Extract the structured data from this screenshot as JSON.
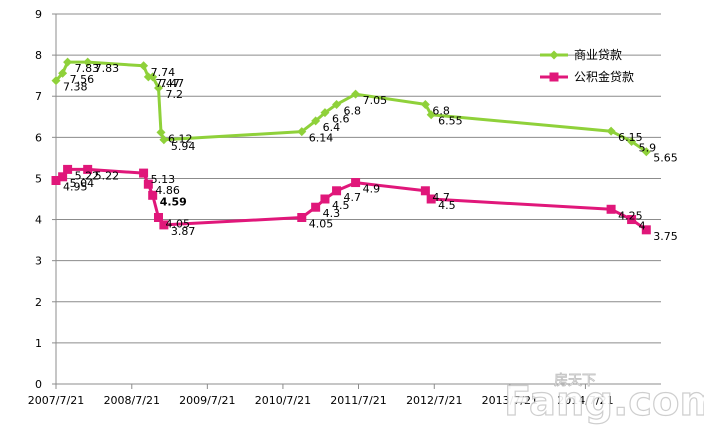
{
  "chart_data": {
    "type": "line",
    "title": "",
    "xlabel": "",
    "ylabel": "",
    "ylim": [
      0,
      9
    ],
    "yticks": [
      "0",
      "1",
      "2",
      "3",
      "4",
      "5",
      "6",
      "7",
      "8",
      "9"
    ],
    "xlim": [
      "2007-07-21",
      "2015-07-21"
    ],
    "xticks": [
      "2007/7/21",
      "2008/7/21",
      "2009/7/21",
      "2010/7/21",
      "2011/7/21",
      "2012/7/21",
      "2013/7/21",
      "2014/7/21"
    ],
    "grid": true,
    "legend_position": "top-right",
    "series": [
      {
        "name": "商业贷款",
        "color": "#8fd13a",
        "marker": "diamond",
        "points": [
          {
            "x": "2007-07-21",
            "y": 7.38,
            "label": "7.38"
          },
          {
            "x": "2007-08-22",
            "y": 7.56,
            "label": "7.56"
          },
          {
            "x": "2007-09-15",
            "y": 7.83,
            "label": "7.83"
          },
          {
            "x": "2007-12-21",
            "y": 7.83,
            "label": "7.83"
          },
          {
            "x": "2008-09-16",
            "y": 7.74,
            "label": "7.74"
          },
          {
            "x": "2008-10-09",
            "y": 7.47,
            "label": "7.47"
          },
          {
            "x": "2008-10-30",
            "y": 7.47,
            "label": "7.47"
          },
          {
            "x": "2008-11-27",
            "y": 7.2,
            "label": "7.2"
          },
          {
            "x": "2008-12-09",
            "y": 6.12,
            "label": "6.12"
          },
          {
            "x": "2008-12-23",
            "y": 5.94,
            "label": "5.94"
          },
          {
            "x": "2010-10-20",
            "y": 6.14,
            "label": "6.14"
          },
          {
            "x": "2010-12-26",
            "y": 6.4,
            "label": "6.4"
          },
          {
            "x": "2011-02-09",
            "y": 6.6,
            "label": "6.6"
          },
          {
            "x": "2011-04-06",
            "y": 6.8,
            "label": "6.8"
          },
          {
            "x": "2011-07-07",
            "y": 7.05,
            "label": "7.05"
          },
          {
            "x": "2012-06-08",
            "y": 6.8,
            "label": "6.8"
          },
          {
            "x": "2012-07-06",
            "y": 6.55,
            "label": "6.55"
          },
          {
            "x": "2014-11-22",
            "y": 6.15,
            "label": "6.15"
          },
          {
            "x": "2015-03-01",
            "y": 5.9,
            "label": "5.9"
          },
          {
            "x": "2015-05-11",
            "y": 5.65,
            "label": "5.65"
          }
        ]
      },
      {
        "name": "公积金贷款",
        "color": "#e0177a",
        "marker": "square",
        "points": [
          {
            "x": "2007-07-21",
            "y": 4.95,
            "label": "4.95"
          },
          {
            "x": "2007-08-22",
            "y": 5.04,
            "label": "5.04"
          },
          {
            "x": "2007-09-15",
            "y": 5.22,
            "label": "5.22"
          },
          {
            "x": "2007-12-21",
            "y": 5.22,
            "label": "5.22"
          },
          {
            "x": "2008-09-16",
            "y": 5.13,
            "label": "5.13"
          },
          {
            "x": "2008-10-09",
            "y": 4.86,
            "label": "4.86"
          },
          {
            "x": "2008-10-30",
            "y": 4.59,
            "label": "4.59"
          },
          {
            "x": "2008-11-27",
            "y": 4.05,
            "label": "4.05"
          },
          {
            "x": "2008-12-23",
            "y": 3.87,
            "label": "3.87"
          },
          {
            "x": "2010-10-20",
            "y": 4.05,
            "label": "4.05"
          },
          {
            "x": "2010-12-26",
            "y": 4.3,
            "label": "4.3"
          },
          {
            "x": "2011-02-09",
            "y": 4.5,
            "label": "4.5"
          },
          {
            "x": "2011-04-06",
            "y": 4.7,
            "label": "4.7"
          },
          {
            "x": "2011-07-07",
            "y": 4.9,
            "label": "4.9"
          },
          {
            "x": "2012-06-08",
            "y": 4.7,
            "label": "4.7"
          },
          {
            "x": "2012-07-06",
            "y": 4.5,
            "label": "4.5"
          },
          {
            "x": "2014-11-22",
            "y": 4.25,
            "label": "4.25"
          },
          {
            "x": "2015-03-01",
            "y": 4.0,
            "label": "4"
          },
          {
            "x": "2015-05-11",
            "y": 3.75,
            "label": "3.75"
          }
        ]
      }
    ]
  },
  "watermark": {
    "brand": "Fang.com",
    "cn": "房天下"
  }
}
